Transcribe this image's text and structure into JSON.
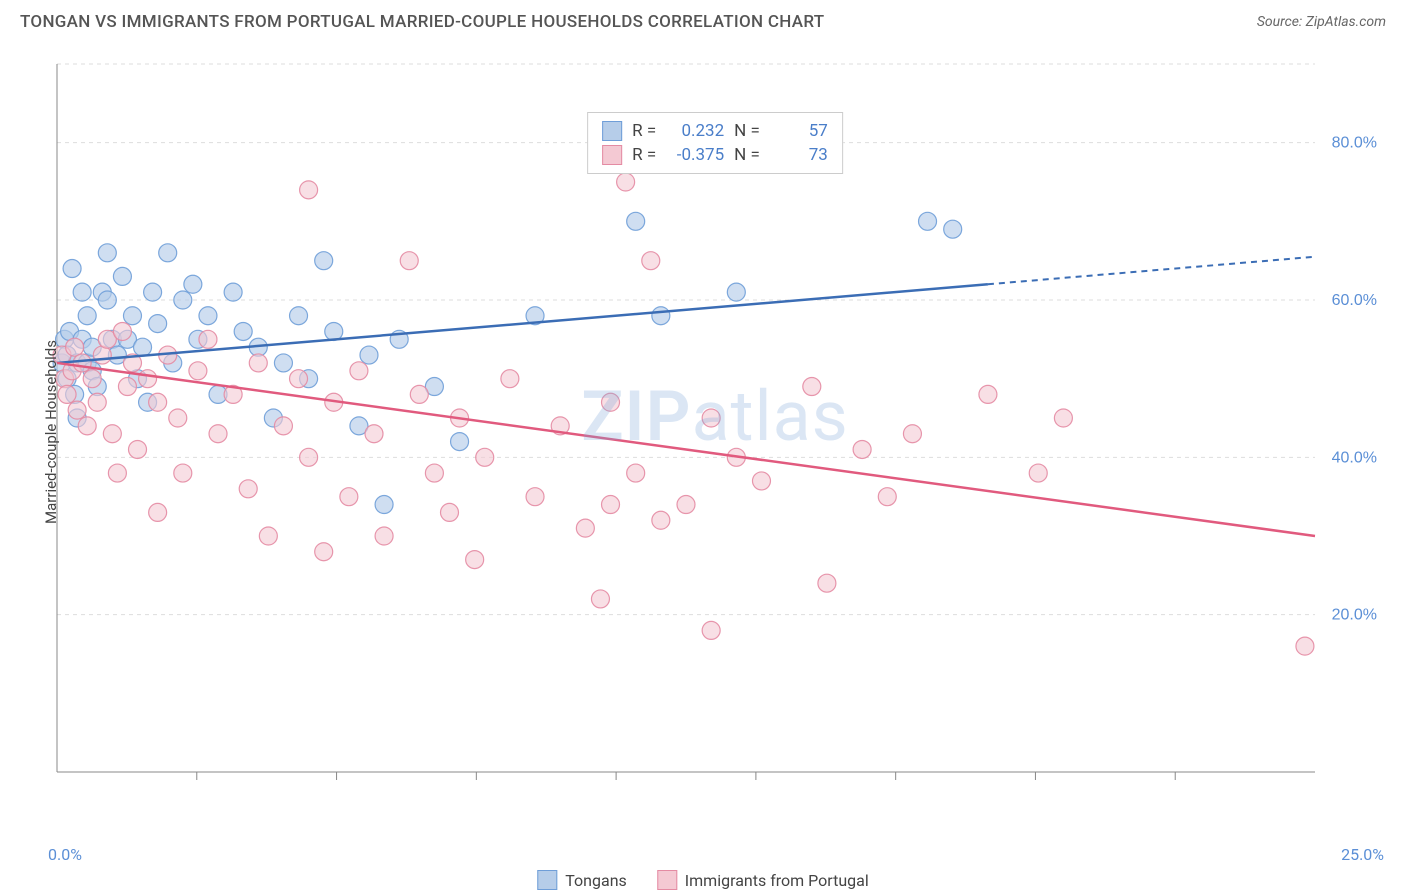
{
  "title": "TONGAN VS IMMIGRANTS FROM PORTUGAL MARRIED-COUPLE HOUSEHOLDS CORRELATION CHART",
  "source": "Source: ZipAtlas.com",
  "y_axis_label": "Married-couple Households",
  "watermark": "ZIPatlas",
  "chart": {
    "type": "scatter",
    "xlim": [
      0,
      25
    ],
    "ylim": [
      0,
      90
    ],
    "x_ticks": [
      0,
      25
    ],
    "x_tick_labels": [
      "0.0%",
      "25.0%"
    ],
    "x_minor_ticks_count": 8,
    "y_ticks": [
      20,
      40,
      60,
      80
    ],
    "y_tick_labels": [
      "20.0%",
      "40.0%",
      "60.0%",
      "80.0%"
    ],
    "grid_color": "#dddddd",
    "grid_dash": "4,4",
    "axis_color": "#888888",
    "background_color": "#ffffff",
    "series": [
      {
        "name": "Tongans",
        "label": "Tongans",
        "color_fill": "#b6cde9",
        "color_stroke": "#6f9ed8",
        "line_color": "#3b6db5",
        "opacity": 0.65,
        "marker_radius": 9,
        "R": "0.232",
        "N": "57",
        "trend": {
          "x1": 0,
          "y1": 52,
          "x2": 18.5,
          "y2": 62,
          "x2_dash": 25,
          "y2_dash": 65.5
        },
        "points": [
          [
            0.1,
            52
          ],
          [
            0.15,
            55
          ],
          [
            0.2,
            53
          ],
          [
            0.2,
            50
          ],
          [
            0.25,
            56
          ],
          [
            0.3,
            64
          ],
          [
            0.35,
            48
          ],
          [
            0.4,
            52
          ],
          [
            0.4,
            45
          ],
          [
            0.5,
            61
          ],
          [
            0.5,
            55
          ],
          [
            0.6,
            58
          ],
          [
            0.6,
            52
          ],
          [
            0.7,
            54
          ],
          [
            0.7,
            51
          ],
          [
            0.8,
            49
          ],
          [
            0.9,
            61
          ],
          [
            1.0,
            66
          ],
          [
            1.0,
            60
          ],
          [
            1.1,
            55
          ],
          [
            1.2,
            53
          ],
          [
            1.3,
            63
          ],
          [
            1.4,
            55
          ],
          [
            1.5,
            58
          ],
          [
            1.6,
            50
          ],
          [
            1.7,
            54
          ],
          [
            1.8,
            47
          ],
          [
            1.9,
            61
          ],
          [
            2.0,
            57
          ],
          [
            2.2,
            66
          ],
          [
            2.3,
            52
          ],
          [
            2.5,
            60
          ],
          [
            2.7,
            62
          ],
          [
            2.8,
            55
          ],
          [
            3.0,
            58
          ],
          [
            3.2,
            48
          ],
          [
            3.5,
            61
          ],
          [
            3.7,
            56
          ],
          [
            4.0,
            54
          ],
          [
            4.3,
            45
          ],
          [
            4.5,
            52
          ],
          [
            4.8,
            58
          ],
          [
            5.0,
            50
          ],
          [
            5.3,
            65
          ],
          [
            5.5,
            56
          ],
          [
            6.0,
            44
          ],
          [
            6.2,
            53
          ],
          [
            6.5,
            34
          ],
          [
            7.5,
            49
          ],
          [
            8.0,
            42
          ],
          [
            9.5,
            58
          ],
          [
            11.5,
            70
          ],
          [
            12.0,
            58
          ],
          [
            13.5,
            61
          ],
          [
            17.3,
            70
          ],
          [
            17.8,
            69
          ],
          [
            6.8,
            55
          ]
        ]
      },
      {
        "name": "Immigrants from Portugal",
        "label": "Immigrants from Portugal",
        "color_fill": "#f4c9d3",
        "color_stroke": "#e48ba3",
        "line_color": "#e15a7e",
        "opacity": 0.6,
        "marker_radius": 9,
        "R": "-0.375",
        "N": "73",
        "trend": {
          "x1": 0,
          "y1": 52,
          "x2": 25,
          "y2": 30
        },
        "points": [
          [
            0.1,
            53
          ],
          [
            0.15,
            50
          ],
          [
            0.2,
            48
          ],
          [
            0.3,
            51
          ],
          [
            0.35,
            54
          ],
          [
            0.4,
            46
          ],
          [
            0.5,
            52
          ],
          [
            0.6,
            44
          ],
          [
            0.7,
            50
          ],
          [
            0.8,
            47
          ],
          [
            0.9,
            53
          ],
          [
            1.0,
            55
          ],
          [
            1.1,
            43
          ],
          [
            1.2,
            38
          ],
          [
            1.3,
            56
          ],
          [
            1.4,
            49
          ],
          [
            1.5,
            52
          ],
          [
            1.6,
            41
          ],
          [
            1.8,
            50
          ],
          [
            2.0,
            47
          ],
          [
            2.0,
            33
          ],
          [
            2.2,
            53
          ],
          [
            2.4,
            45
          ],
          [
            2.5,
            38
          ],
          [
            2.8,
            51
          ],
          [
            3.0,
            55
          ],
          [
            3.2,
            43
          ],
          [
            3.5,
            48
          ],
          [
            3.8,
            36
          ],
          [
            4.0,
            52
          ],
          [
            4.2,
            30
          ],
          [
            4.5,
            44
          ],
          [
            4.8,
            50
          ],
          [
            5.0,
            74
          ],
          [
            5.0,
            40
          ],
          [
            5.3,
            28
          ],
          [
            5.5,
            47
          ],
          [
            5.8,
            35
          ],
          [
            6.0,
            51
          ],
          [
            6.3,
            43
          ],
          [
            6.5,
            30
          ],
          [
            7.0,
            65
          ],
          [
            7.2,
            48
          ],
          [
            7.5,
            38
          ],
          [
            7.8,
            33
          ],
          [
            8.0,
            45
          ],
          [
            8.3,
            27
          ],
          [
            8.5,
            40
          ],
          [
            9.0,
            50
          ],
          [
            9.5,
            35
          ],
          [
            10.0,
            44
          ],
          [
            10.5,
            31
          ],
          [
            10.8,
            22
          ],
          [
            11.0,
            47
          ],
          [
            11.3,
            75
          ],
          [
            11.5,
            38
          ],
          [
            11.8,
            65
          ],
          [
            12.0,
            32
          ],
          [
            12.5,
            34
          ],
          [
            13.0,
            45
          ],
          [
            13.0,
            18
          ],
          [
            13.5,
            40
          ],
          [
            14.0,
            37
          ],
          [
            15.0,
            49
          ],
          [
            15.3,
            24
          ],
          [
            16.0,
            41
          ],
          [
            16.5,
            35
          ],
          [
            17.0,
            43
          ],
          [
            18.5,
            48
          ],
          [
            19.5,
            38
          ],
          [
            20.0,
            45
          ],
          [
            24.8,
            16
          ],
          [
            11.0,
            34
          ]
        ]
      }
    ]
  },
  "bottom_legend": [
    {
      "label": "Tongans",
      "fill": "#b6cde9",
      "stroke": "#6f9ed8"
    },
    {
      "label": "Immigrants from Portugal",
      "fill": "#f4c9d3",
      "stroke": "#e48ba3"
    }
  ],
  "colors": {
    "title_text": "#555555",
    "source_text": "#666666",
    "tick_text": "#5b8fd6"
  }
}
